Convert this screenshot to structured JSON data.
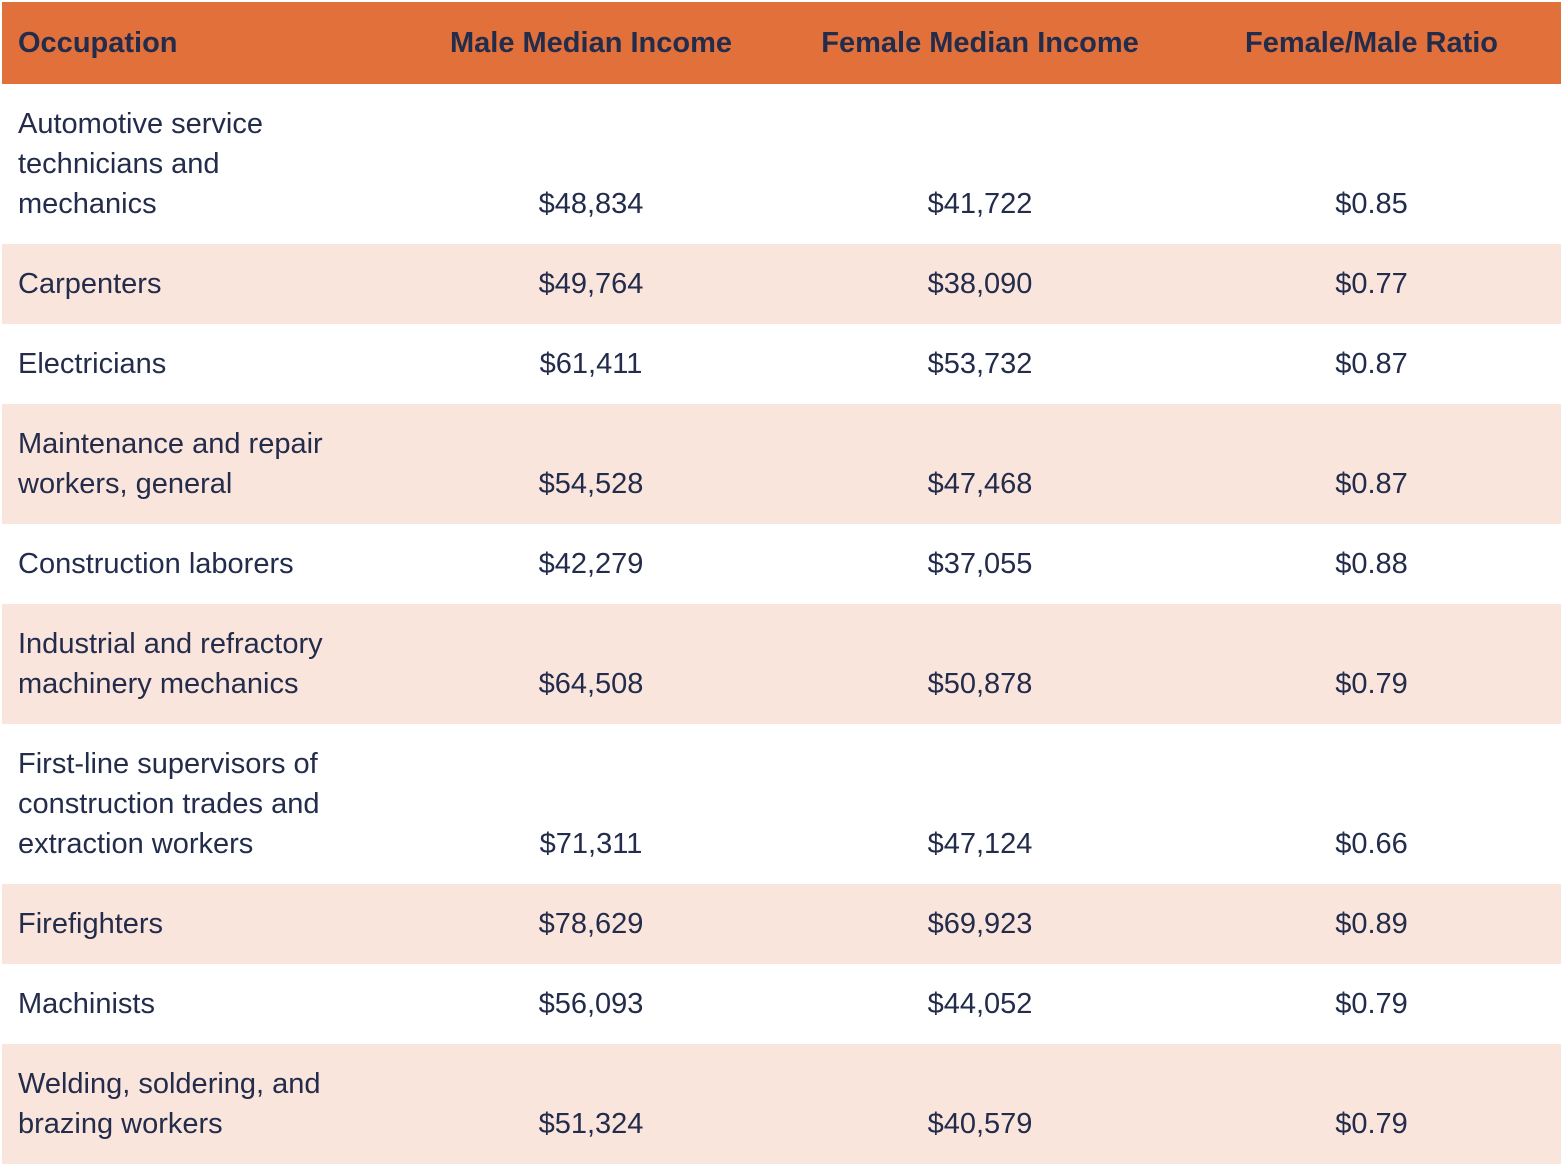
{
  "colors": {
    "header_bg": "#E2703B",
    "alt_row_bg": "#FAE5DD",
    "text": "#232C4B",
    "page_bg": "#FFFFFF"
  },
  "chart_data": {
    "type": "table",
    "title": "",
    "columns": [
      "Occupation",
      "Male Median Income",
      "Female Median Income",
      "Female/Male Ratio"
    ],
    "rows": [
      [
        "Automotive service technicians and mechanics",
        "$48,834",
        "$41,722",
        "$0.85"
      ],
      [
        "Carpenters",
        "$49,764",
        "$38,090",
        "$0.77"
      ],
      [
        "Electricians",
        "$61,411",
        "$53,732",
        "$0.87"
      ],
      [
        "Maintenance and repair workers, general",
        "$54,528",
        "$47,468",
        "$0.87"
      ],
      [
        "Construction laborers",
        "$42,279",
        "$37,055",
        "$0.88"
      ],
      [
        "Industrial and refractory machinery mechanics",
        "$64,508",
        "$50,878",
        "$0.79"
      ],
      [
        "First-line supervisors of construction trades and extraction workers",
        "$71,311",
        "$47,124",
        "$0.66"
      ],
      [
        "Firefighters",
        "$78,629",
        "$69,923",
        "$0.89"
      ],
      [
        "Machinists",
        "$56,093",
        "$44,052",
        "$0.79"
      ],
      [
        "Welding, soldering, and brazing workers",
        "$51,324",
        "$40,579",
        "$0.79"
      ]
    ],
    "layout": {
      "header_text_color": "#232C4B",
      "row_striping": "alternating white / light pink starting with white",
      "value_alignment": "center",
      "occupation_alignment": "left"
    }
  }
}
